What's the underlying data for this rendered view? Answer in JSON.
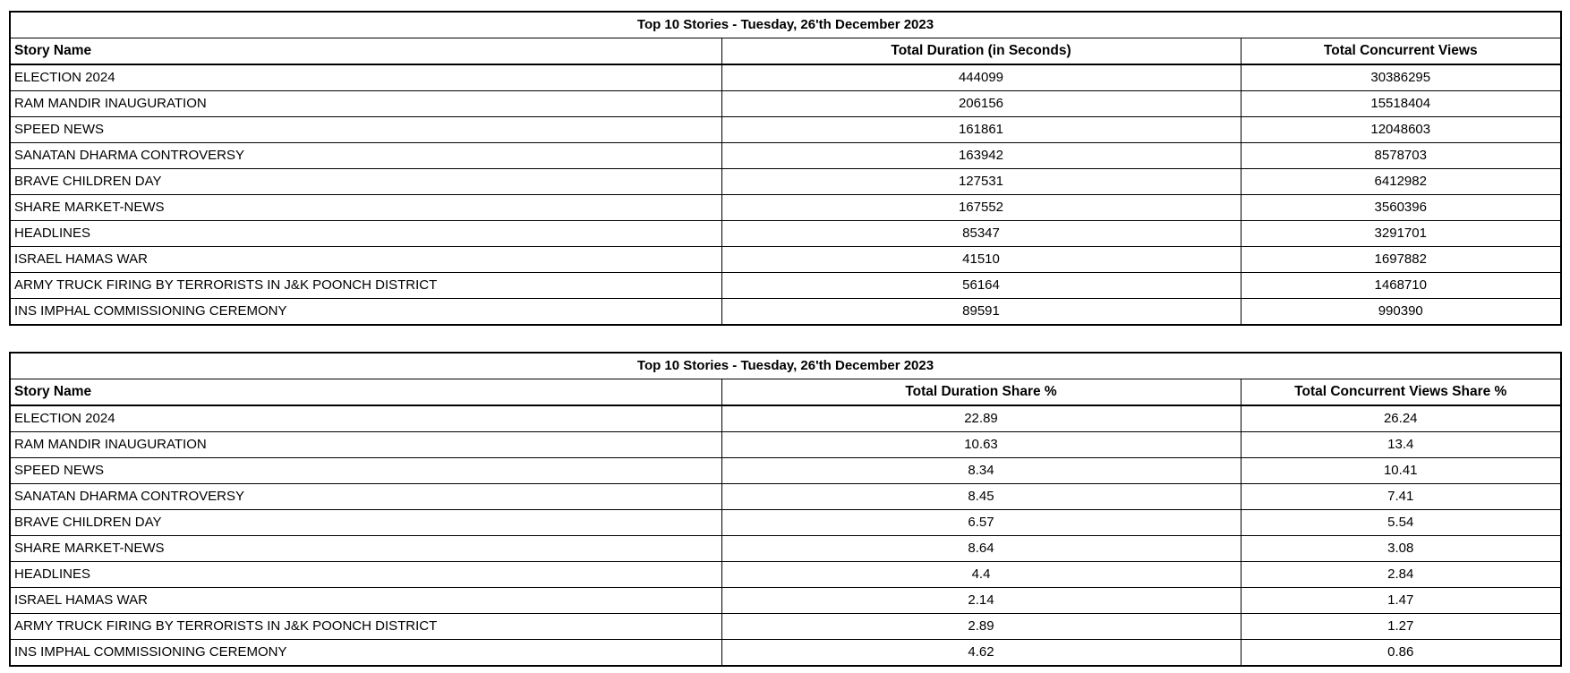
{
  "colors": {
    "background": "#ffffff",
    "border": "#000000",
    "text": "#000000"
  },
  "tables": [
    {
      "title": "Top 10 Stories - Tuesday, 26'th December 2023",
      "columns": [
        "Story Name",
        "Total Duration (in Seconds)",
        "Total Concurrent Views"
      ],
      "rows": [
        {
          "story": "ELECTION 2024",
          "duration": "444099",
          "views": "30386295"
        },
        {
          "story": "RAM MANDIR INAUGURATION",
          "duration": "206156",
          "views": "15518404"
        },
        {
          "story": "SPEED NEWS",
          "duration": "161861",
          "views": "12048603"
        },
        {
          "story": "SANATAN DHARMA CONTROVERSY",
          "duration": "163942",
          "views": "8578703"
        },
        {
          "story": "BRAVE CHILDREN DAY",
          "duration": "127531",
          "views": "6412982"
        },
        {
          "story": "SHARE MARKET-NEWS",
          "duration": "167552",
          "views": "3560396"
        },
        {
          "story": "HEADLINES",
          "duration": "85347",
          "views": "3291701"
        },
        {
          "story": "ISRAEL HAMAS WAR",
          "duration": "41510",
          "views": "1697882"
        },
        {
          "story": "ARMY TRUCK FIRING BY TERRORISTS IN J&K POONCH DISTRICT",
          "duration": "56164",
          "views": "1468710"
        },
        {
          "story": "INS IMPHAL COMMISSIONING CEREMONY",
          "duration": "89591",
          "views": "990390"
        }
      ]
    },
    {
      "title": "Top 10 Stories - Tuesday, 26'th December 2023",
      "columns": [
        "Story Name",
        "Total Duration Share %",
        "Total Concurrent Views Share %"
      ],
      "rows": [
        {
          "story": "ELECTION 2024",
          "duration_share": "22.89",
          "views_share": "26.24"
        },
        {
          "story": "RAM MANDIR INAUGURATION",
          "duration_share": "10.63",
          "views_share": "13.4"
        },
        {
          "story": "SPEED NEWS",
          "duration_share": "8.34",
          "views_share": "10.41"
        },
        {
          "story": "SANATAN DHARMA CONTROVERSY",
          "duration_share": "8.45",
          "views_share": "7.41"
        },
        {
          "story": "BRAVE CHILDREN DAY",
          "duration_share": "6.57",
          "views_share": "5.54"
        },
        {
          "story": "SHARE MARKET-NEWS",
          "duration_share": "8.64",
          "views_share": "3.08"
        },
        {
          "story": "HEADLINES",
          "duration_share": "4.4",
          "views_share": "2.84"
        },
        {
          "story": "ISRAEL HAMAS WAR",
          "duration_share": "2.14",
          "views_share": "1.47"
        },
        {
          "story": "ARMY TRUCK FIRING BY TERRORISTS IN J&K POONCH DISTRICT",
          "duration_share": "2.89",
          "views_share": "1.27"
        },
        {
          "story": "INS IMPHAL COMMISSIONING CEREMONY",
          "duration_share": "4.62",
          "views_share": "0.86"
        }
      ]
    }
  ]
}
